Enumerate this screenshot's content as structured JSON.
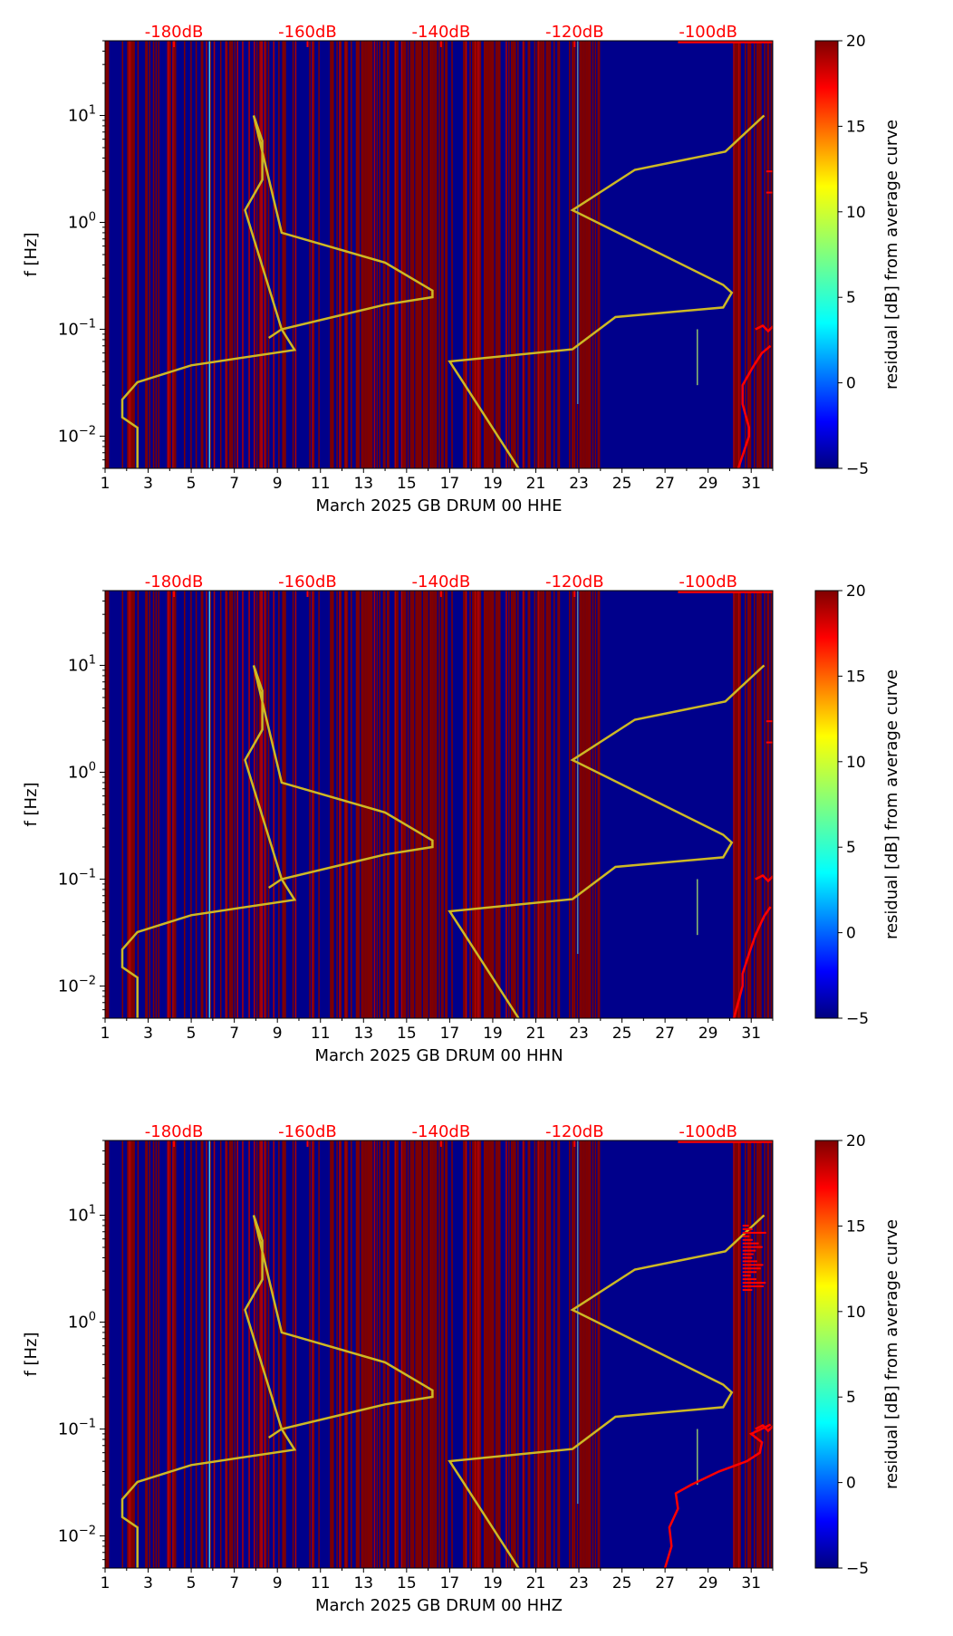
{
  "chart_data": [
    {
      "type": "heatmap",
      "title": "",
      "xlabel": "March 2025 GB DRUM 00 HHE",
      "ylabel": "f [Hz]",
      "xlim": [
        1,
        32
      ],
      "ylim": [
        0.005,
        50
      ],
      "yscale": "log",
      "xticks": [
        "1",
        "3",
        "5",
        "7",
        "9",
        "11",
        "13",
        "15",
        "17",
        "19",
        "21",
        "23",
        "25",
        "27",
        "29",
        "31"
      ],
      "ytick_labels": [
        {
          "value": 0.01,
          "base": "10",
          "exp": "−2"
        },
        {
          "value": 0.1,
          "base": "10",
          "exp": "−1"
        },
        {
          "value": 1,
          "base": "10",
          "exp": "0"
        },
        {
          "value": 10,
          "base": "10",
          "exp": "1"
        }
      ],
      "top_labels": [
        {
          "x": 4.2,
          "text": "-180dB"
        },
        {
          "x": 10.4,
          "text": "-160dB"
        },
        {
          "x": 16.6,
          "text": "-140dB"
        },
        {
          "x": 22.8,
          "text": "-120dB"
        },
        {
          "x": 29.0,
          "text": "-100dB"
        }
      ],
      "colorbar": {
        "label": "residual [dB] from average curve",
        "min": -5,
        "max": 20,
        "ticks": [
          "−5",
          "0",
          "5",
          "10",
          "15",
          "20"
        ]
      },
      "colors": {
        "low": "#00008b",
        "high": "#800000",
        "stripe": "#b00000",
        "noise_model": "#cdb924",
        "mean_curve": "#ff0000"
      },
      "noise_model_lines": [
        {
          "name": "low noise model",
          "points": [
            [
              2.5,
              0.005
            ],
            [
              2.5,
              0.009
            ],
            [
              2.5,
              0.012
            ],
            [
              1.8,
              0.015
            ],
            [
              1.8,
              0.02
            ],
            [
              1.8,
              0.022
            ],
            [
              2.5,
              0.032
            ],
            [
              5,
              0.046
            ],
            [
              9.8,
              0.064
            ],
            [
              9.2,
              0.1
            ],
            [
              7.5,
              1.3
            ],
            [
              8.3,
              2.5
            ],
            [
              8.3,
              5.8
            ],
            [
              7.9,
              10
            ],
            [
              9.2,
              0.8
            ],
            [
              14,
              0.42
            ],
            [
              16.2,
              0.23
            ],
            [
              16.2,
              0.2
            ],
            [
              14,
              0.17
            ],
            [
              9.2,
              0.1
            ],
            [
              8.6,
              0.083
            ]
          ]
        },
        {
          "name": "high noise model",
          "points": [
            [
              20.2,
              0.005
            ],
            [
              17,
              0.05
            ],
            [
              22.7,
              0.065
            ],
            [
              24.7,
              0.13
            ],
            [
              29.7,
              0.16
            ],
            [
              30.1,
              0.22
            ],
            [
              29.7,
              0.26
            ],
            [
              22.7,
              1.3
            ],
            [
              25.6,
              3.1
            ],
            [
              29.8,
              4.6
            ],
            [
              31.6,
              10
            ]
          ]
        }
      ],
      "mean_curve": [
        [
          30.4,
          0.005
        ],
        [
          30.9,
          0.01
        ],
        [
          30.9,
          0.012
        ],
        [
          30.6,
          0.02
        ],
        [
          30.6,
          0.03
        ],
        [
          31.1,
          0.045
        ],
        [
          31.5,
          0.06
        ],
        [
          31.9,
          0.07
        ]
      ]
    },
    {
      "type": "heatmap",
      "title": "",
      "xlabel": "March 2025 GB DRUM 00 HHN",
      "ylabel": "f [Hz]",
      "xlim": [
        1,
        32
      ],
      "ylim": [
        0.005,
        50
      ],
      "yscale": "log",
      "xticks": [
        "1",
        "3",
        "5",
        "7",
        "9",
        "11",
        "13",
        "15",
        "17",
        "19",
        "21",
        "23",
        "25",
        "27",
        "29",
        "31"
      ],
      "ytick_labels": [
        {
          "value": 0.01,
          "base": "10",
          "exp": "−2"
        },
        {
          "value": 0.1,
          "base": "10",
          "exp": "−1"
        },
        {
          "value": 1,
          "base": "10",
          "exp": "0"
        },
        {
          "value": 10,
          "base": "10",
          "exp": "1"
        }
      ],
      "top_labels": [
        {
          "x": 4.2,
          "text": "-180dB"
        },
        {
          "x": 10.4,
          "text": "-160dB"
        },
        {
          "x": 16.6,
          "text": "-140dB"
        },
        {
          "x": 22.8,
          "text": "-120dB"
        },
        {
          "x": 29.0,
          "text": "-100dB"
        }
      ],
      "colorbar": {
        "label": "residual [dB] from average curve",
        "min": -5,
        "max": 20,
        "ticks": [
          "−5",
          "0",
          "5",
          "10",
          "15",
          "20"
        ]
      },
      "colors": {
        "low": "#00008b",
        "high": "#800000",
        "stripe": "#b00000",
        "noise_model": "#cdb924",
        "mean_curve": "#ff0000"
      },
      "noise_model_lines": [
        {
          "name": "low noise model",
          "points": [
            [
              2.5,
              0.005
            ],
            [
              2.5,
              0.009
            ],
            [
              2.5,
              0.012
            ],
            [
              1.8,
              0.015
            ],
            [
              1.8,
              0.02
            ],
            [
              1.8,
              0.022
            ],
            [
              2.5,
              0.032
            ],
            [
              5,
              0.046
            ],
            [
              9.8,
              0.064
            ],
            [
              9.2,
              0.1
            ],
            [
              7.5,
              1.3
            ],
            [
              8.3,
              2.5
            ],
            [
              8.3,
              5.8
            ],
            [
              7.9,
              10
            ],
            [
              9.2,
              0.8
            ],
            [
              14,
              0.42
            ],
            [
              16.2,
              0.23
            ],
            [
              16.2,
              0.2
            ],
            [
              14,
              0.17
            ],
            [
              9.2,
              0.1
            ],
            [
              8.6,
              0.083
            ]
          ]
        },
        {
          "name": "high noise model",
          "points": [
            [
              20.2,
              0.005
            ],
            [
              17,
              0.05
            ],
            [
              22.7,
              0.065
            ],
            [
              24.7,
              0.13
            ],
            [
              29.7,
              0.16
            ],
            [
              30.1,
              0.22
            ],
            [
              29.7,
              0.26
            ],
            [
              22.7,
              1.3
            ],
            [
              25.6,
              3.1
            ],
            [
              29.8,
              4.6
            ],
            [
              31.6,
              10
            ]
          ]
        }
      ],
      "mean_curve": [
        [
          30.2,
          0.005
        ],
        [
          30.6,
          0.01
        ],
        [
          30.6,
          0.013
        ],
        [
          30.9,
          0.02
        ],
        [
          31.2,
          0.03
        ],
        [
          31.6,
          0.045
        ],
        [
          31.9,
          0.055
        ]
      ]
    },
    {
      "type": "heatmap",
      "title": "",
      "xlabel": "March 2025 GB DRUM 00 HHZ",
      "ylabel": "f [Hz]",
      "xlim": [
        1,
        32
      ],
      "ylim": [
        0.005,
        50
      ],
      "yscale": "log",
      "xticks": [
        "1",
        "3",
        "5",
        "7",
        "9",
        "11",
        "13",
        "15",
        "17",
        "19",
        "21",
        "23",
        "25",
        "27",
        "29",
        "31"
      ],
      "ytick_labels": [
        {
          "value": 0.01,
          "base": "10",
          "exp": "−2"
        },
        {
          "value": 0.1,
          "base": "10",
          "exp": "−1"
        },
        {
          "value": 1,
          "base": "10",
          "exp": "0"
        },
        {
          "value": 10,
          "base": "10",
          "exp": "1"
        }
      ],
      "top_labels": [
        {
          "x": 4.2,
          "text": "-180dB"
        },
        {
          "x": 10.4,
          "text": "-160dB"
        },
        {
          "x": 16.6,
          "text": "-140dB"
        },
        {
          "x": 22.8,
          "text": "-120dB"
        },
        {
          "x": 29.0,
          "text": "-100dB"
        }
      ],
      "colorbar": {
        "label": "residual [dB] from average curve",
        "min": -5,
        "max": 20,
        "ticks": [
          "−5",
          "0",
          "5",
          "10",
          "15",
          "20"
        ]
      },
      "colors": {
        "low": "#00008b",
        "high": "#800000",
        "stripe": "#b00000",
        "noise_model": "#cdb924",
        "mean_curve": "#ff0000"
      },
      "noise_model_lines": [
        {
          "name": "low noise model",
          "points": [
            [
              2.5,
              0.005
            ],
            [
              2.5,
              0.009
            ],
            [
              2.5,
              0.012
            ],
            [
              1.8,
              0.015
            ],
            [
              1.8,
              0.02
            ],
            [
              1.8,
              0.022
            ],
            [
              2.5,
              0.032
            ],
            [
              5,
              0.046
            ],
            [
              9.8,
              0.064
            ],
            [
              9.2,
              0.1
            ],
            [
              7.5,
              1.3
            ],
            [
              8.3,
              2.5
            ],
            [
              8.3,
              5.8
            ],
            [
              7.9,
              10
            ],
            [
              9.2,
              0.8
            ],
            [
              14,
              0.42
            ],
            [
              16.2,
              0.23
            ],
            [
              16.2,
              0.2
            ],
            [
              14,
              0.17
            ],
            [
              9.2,
              0.1
            ],
            [
              8.6,
              0.083
            ]
          ]
        },
        {
          "name": "high noise model",
          "points": [
            [
              20.2,
              0.005
            ],
            [
              17,
              0.05
            ],
            [
              22.7,
              0.065
            ],
            [
              24.7,
              0.13
            ],
            [
              29.7,
              0.16
            ],
            [
              30.1,
              0.22
            ],
            [
              29.7,
              0.26
            ],
            [
              22.7,
              1.3
            ],
            [
              25.6,
              3.1
            ],
            [
              29.8,
              4.6
            ],
            [
              31.6,
              10
            ]
          ]
        }
      ],
      "mean_curve": [
        [
          27,
          0.005
        ],
        [
          27.3,
          0.008
        ],
        [
          27.2,
          0.012
        ],
        [
          27.6,
          0.018
        ],
        [
          27.5,
          0.025
        ],
        [
          28.2,
          0.03
        ],
        [
          29.5,
          0.04
        ],
        [
          30.8,
          0.05
        ],
        [
          31.4,
          0.06
        ],
        [
          31.5,
          0.075
        ],
        [
          31,
          0.09
        ],
        [
          31.9,
          0.11
        ]
      ]
    }
  ]
}
